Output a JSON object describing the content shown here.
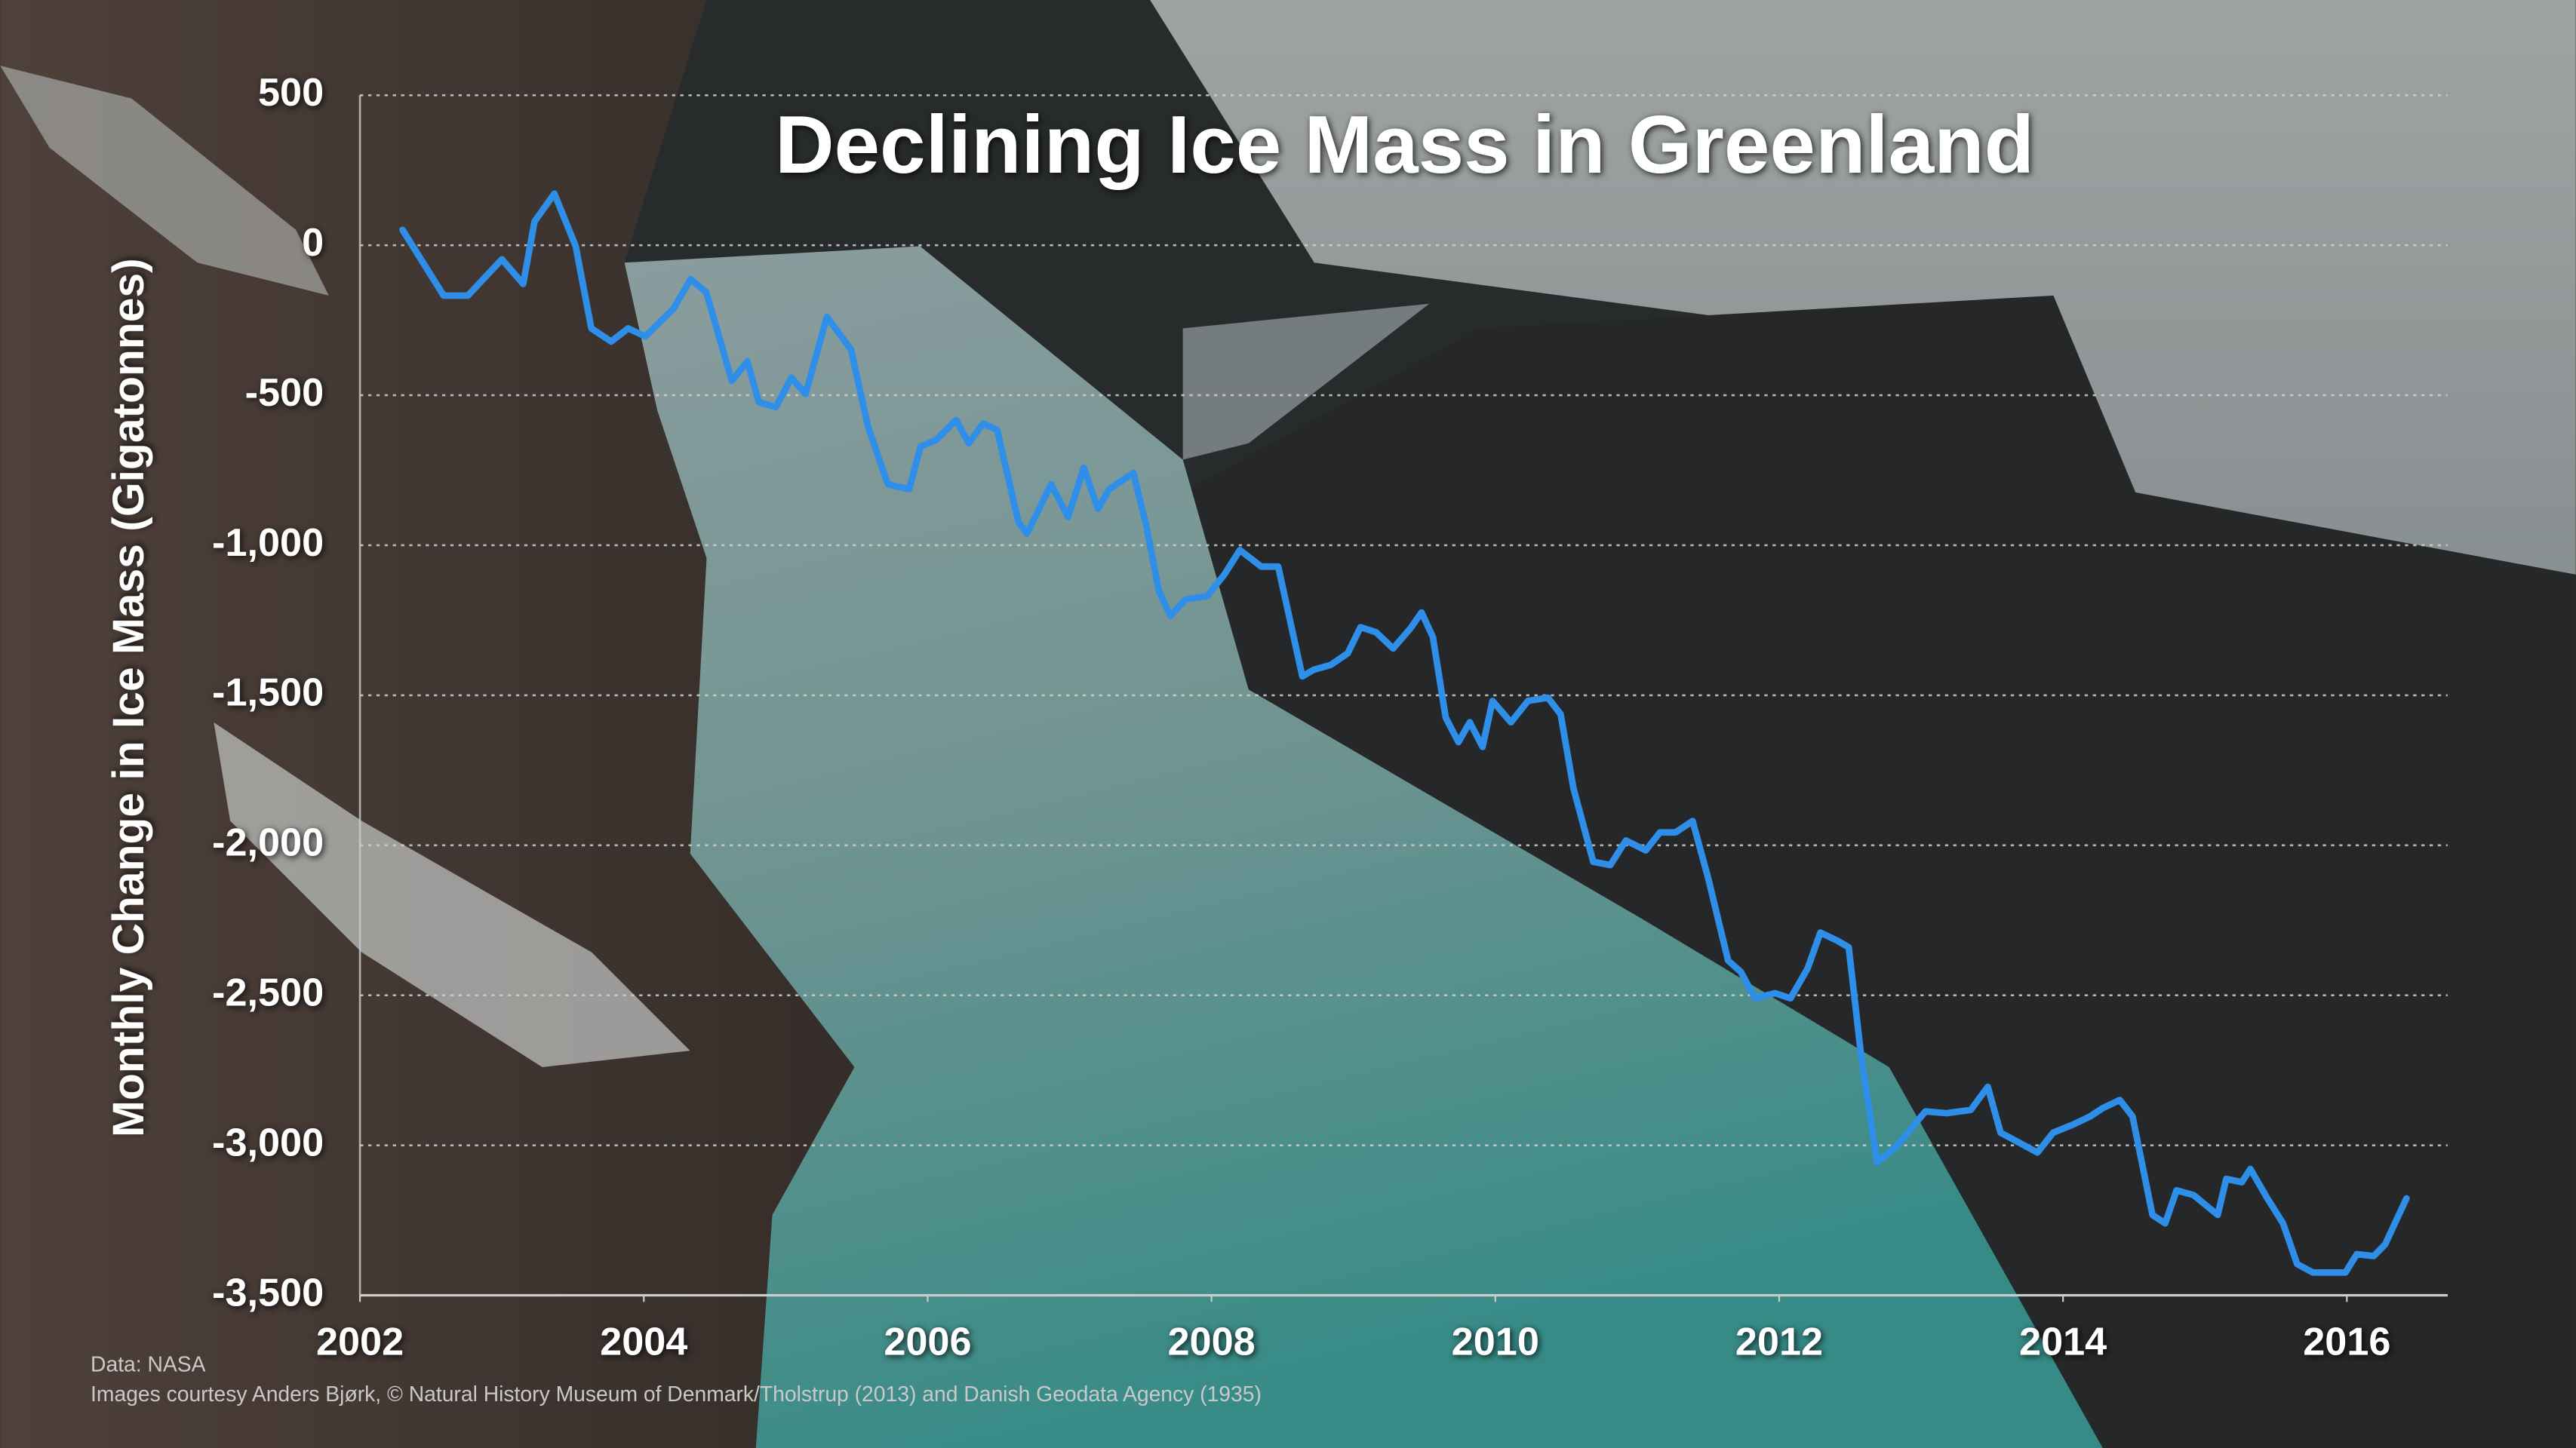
{
  "chart_data": {
    "type": "line",
    "title": "Declining Ice Mass in Greenland",
    "ylabel": "Monthly Change in Ice Mass (Gigatonnes)",
    "source": "Data: NASA",
    "credits": "Images courtesy Anders Bjørk, © Natural History Museum of Denmark/Tholstrup (2013) and Danish Geodata Agency (1935)",
    "color": "#2f8fe8",
    "grid": true,
    "x": [
      2002.3,
      2002.59,
      2002.76,
      2003.0,
      2003.15,
      2003.23,
      2003.37,
      2003.52,
      2003.63,
      2003.77,
      2003.89,
      2004.01,
      2004.21,
      2004.33,
      2004.44,
      2004.62,
      2004.73,
      2004.81,
      2004.93,
      2005.04,
      2005.14,
      2005.29,
      2005.46,
      2005.58,
      2005.72,
      2005.87,
      2005.95,
      2006.06,
      2006.2,
      2006.29,
      2006.39,
      2006.49,
      2006.64,
      2006.7,
      2006.87,
      2006.99,
      2007.1,
      2007.2,
      2007.28,
      2007.45,
      2007.54,
      2007.63,
      2007.71,
      2007.82,
      2007.97,
      2008.09,
      2008.2,
      2008.35,
      2008.47,
      2008.64,
      2008.72,
      2008.84,
      2008.96,
      2009.05,
      2009.16,
      2009.28,
      2009.4,
      2009.48,
      2009.56,
      2009.65,
      2009.74,
      2009.82,
      2009.91,
      2009.98,
      2010.11,
      2010.23,
      2010.37,
      2010.46,
      2010.55,
      2010.69,
      2010.81,
      2010.92,
      2011.06,
      2011.16,
      2011.27,
      2011.39,
      2011.5,
      2011.64,
      2011.73,
      2011.83,
      2011.97,
      2012.08,
      2012.2,
      2012.29,
      2012.41,
      2012.49,
      2012.58,
      2012.69,
      2012.83,
      2013.03,
      2013.18,
      2013.35,
      2013.47,
      2013.56,
      2013.82,
      2013.93,
      2014.07,
      2014.19,
      2014.28,
      2014.4,
      2014.49,
      2014.63,
      2014.72,
      2014.8,
      2014.92,
      2015.09,
      2015.15,
      2015.26,
      2015.32,
      2015.44,
      2015.55,
      2015.65,
      2015.76,
      2015.99,
      2016.07,
      2016.19,
      2016.27,
      2016.42
    ],
    "values": [
      51,
      -168,
      -168,
      -47,
      -129,
      79,
      172,
      -3,
      -277,
      -321,
      -277,
      -304,
      -211,
      -113,
      -157,
      -452,
      -387,
      -523,
      -540,
      -441,
      -496,
      -239,
      -348,
      -605,
      -797,
      -813,
      -671,
      -649,
      -583,
      -660,
      -594,
      -616,
      -923,
      -961,
      -797,
      -906,
      -742,
      -879,
      -813,
      -759,
      -934,
      -1153,
      -1235,
      -1180,
      -1169,
      -1098,
      -1016,
      -1071,
      -1071,
      -1437,
      -1415,
      -1399,
      -1360,
      -1273,
      -1290,
      -1344,
      -1278,
      -1224,
      -1306,
      -1574,
      -1656,
      -1590,
      -1672,
      -1519,
      -1590,
      -1519,
      -1508,
      -1563,
      -1809,
      -2055,
      -2066,
      -1984,
      -2017,
      -1957,
      -1957,
      -1919,
      -2110,
      -2384,
      -2422,
      -2510,
      -2493,
      -2510,
      -2411,
      -2291,
      -2318,
      -2340,
      -2712,
      -3057,
      -3002,
      -2887,
      -2893,
      -2882,
      -2805,
      -2958,
      -3024,
      -2958,
      -2931,
      -2904,
      -2876,
      -2849,
      -2904,
      -3232,
      -3260,
      -3150,
      -3166,
      -3232,
      -3112,
      -3123,
      -3079,
      -3177,
      -3260,
      -3396,
      -3424,
      -3424,
      -3363,
      -3369,
      -3330,
      -3177
    ],
    "xlim": [
      2002,
      2016.71
    ],
    "xticks": [
      2002,
      2004,
      2006,
      2008,
      2010,
      2012,
      2014,
      2016
    ],
    "ylim": [
      -3500,
      500
    ],
    "yticks": [
      500,
      0,
      -500,
      {
        "value": -1000,
        "label": "-1,000"
      },
      {
        "value": -1500,
        "label": "-1,500"
      },
      {
        "value": -2000,
        "label": "-2,000"
      },
      {
        "value": -2500,
        "label": "-2,500"
      },
      {
        "value": -3000,
        "label": "-3,000"
      },
      {
        "value": -3500,
        "label": "-3,500"
      }
    ]
  }
}
